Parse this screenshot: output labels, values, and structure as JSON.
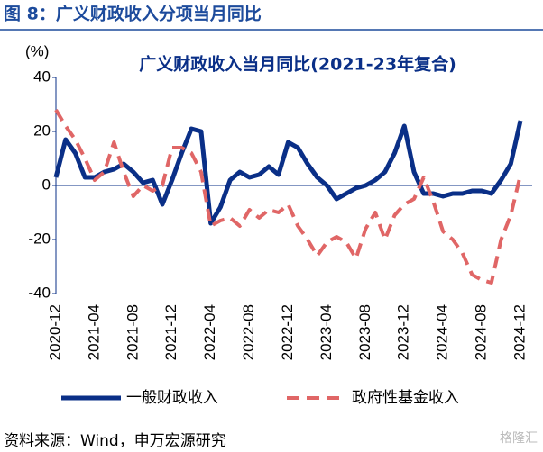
{
  "header": {
    "title": "图 8：广义财政收入分项当月同比"
  },
  "chart_data": {
    "type": "line",
    "title": "广义财政收入当月同比(2021-23年复合)",
    "y_label": "(%)",
    "categories": [
      "2020-12",
      null,
      null,
      null,
      "2021-04",
      null,
      null,
      null,
      "2021-08",
      null,
      null,
      null,
      "2021-12",
      null,
      null,
      null,
      "2022-04",
      null,
      null,
      null,
      "2022-08",
      null,
      null,
      null,
      "2022-12",
      null,
      null,
      null,
      "2023-04",
      null,
      null,
      null,
      "2023-08",
      null,
      null,
      null,
      "2023-12",
      null,
      null,
      null,
      "2024-04",
      null,
      null,
      null,
      "2024-08",
      null,
      null,
      null,
      "2024-12"
    ],
    "series": [
      {
        "name": "一般财政收入",
        "color": "#0a2f87",
        "dashed": false,
        "values": [
          3,
          17,
          12,
          3,
          3,
          5,
          6,
          8,
          5,
          1,
          2,
          -7,
          2,
          12,
          21,
          20,
          -14,
          -8,
          2,
          5,
          3,
          4,
          7,
          4,
          16,
          14,
          8,
          3,
          0,
          -5,
          -3,
          -1,
          0,
          2,
          5,
          12,
          22,
          5,
          -3,
          -3,
          -4,
          -3,
          -3,
          -2,
          -2,
          -3,
          2,
          8,
          24
        ]
      },
      {
        "name": "政府性基金收入",
        "color": "#e06666",
        "dashed": true,
        "values": [
          28,
          22,
          17,
          10,
          2,
          5,
          16,
          5,
          -4,
          0,
          -2,
          0,
          14,
          14,
          12,
          5,
          -15,
          -13,
          -12,
          -15,
          -9,
          -12,
          -9,
          -10,
          -7,
          -15,
          -20,
          -26,
          -21,
          -19,
          -21,
          -27,
          -16,
          -10,
          -20,
          -11,
          -7,
          -5,
          3,
          -6,
          -17,
          -20,
          -25,
          -33,
          -35,
          -36,
          -20,
          -11,
          4
        ]
      }
    ],
    "ylim": [
      -40,
      40
    ],
    "yticks": [
      40,
      20,
      0,
      -20,
      -40
    ],
    "grid": false,
    "legend": "bottom"
  },
  "footer": {
    "source": "资料来源：Wind，申万宏源研究",
    "watermark": "格隆汇"
  }
}
